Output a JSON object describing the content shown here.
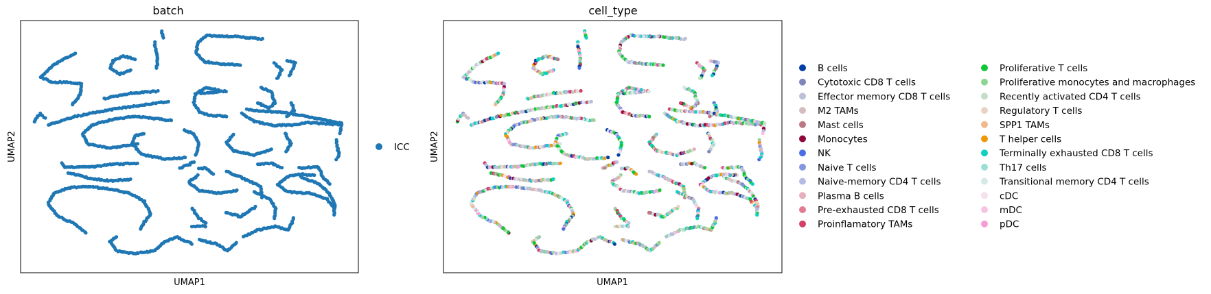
{
  "chart_data": [
    {
      "type": "scatter",
      "title": "batch",
      "xlabel": "UMAP1",
      "ylabel": "UMAP2",
      "legend": "right",
      "grid": false,
      "categories": [
        {
          "name": "ICC",
          "color": "#1f77b4"
        }
      ]
    },
    {
      "type": "scatter",
      "title": "cell_type",
      "xlabel": "UMAP1",
      "ylabel": "UMAP2",
      "legend": "right",
      "grid": false,
      "categories": [
        {
          "name": "B cells",
          "color": "#023fa5"
        },
        {
          "name": "Cytotoxic CD8 T cells",
          "color": "#7d87b9"
        },
        {
          "name": "Effector memory CD8 T cells",
          "color": "#bec1d4"
        },
        {
          "name": "M2 TAMs",
          "color": "#d6bcc0"
        },
        {
          "name": "Mast cells",
          "color": "#bb7784"
        },
        {
          "name": "Monocytes",
          "color": "#8e063b"
        },
        {
          "name": "NK",
          "color": "#4a6fe3"
        },
        {
          "name": "Naive T cells",
          "color": "#8595e1"
        },
        {
          "name": "Naive-memory CD4 T cells",
          "color": "#b5bbe3"
        },
        {
          "name": "Plasma B cells",
          "color": "#e6afb9"
        },
        {
          "name": "Pre-exhausted CD8 T cells",
          "color": "#e07b91"
        },
        {
          "name": "Proinflamatory TAMs",
          "color": "#d33f6a"
        },
        {
          "name": "Proliferative T cells",
          "color": "#11c638"
        },
        {
          "name": "Proliferative monocytes and macrophages",
          "color": "#8dd593"
        },
        {
          "name": "Recently activated CD4 T cells",
          "color": "#c6dec7"
        },
        {
          "name": "Regulatory T cells",
          "color": "#ead3c6"
        },
        {
          "name": "SPP1 TAMs",
          "color": "#f0b98d"
        },
        {
          "name": "T helper cells",
          "color": "#ef9708"
        },
        {
          "name": "Terminally exhausted CD8 T cells",
          "color": "#0fcfc0"
        },
        {
          "name": "Th17 cells",
          "color": "#9cded6"
        },
        {
          "name": "Transitional memory CD4 T cells",
          "color": "#d5eae7"
        },
        {
          "name": "cDC",
          "color": "#f3e1eb"
        },
        {
          "name": "mDC",
          "color": "#f6c4e1"
        },
        {
          "name": "pDC",
          "color": "#f79cd4"
        }
      ]
    }
  ]
}
